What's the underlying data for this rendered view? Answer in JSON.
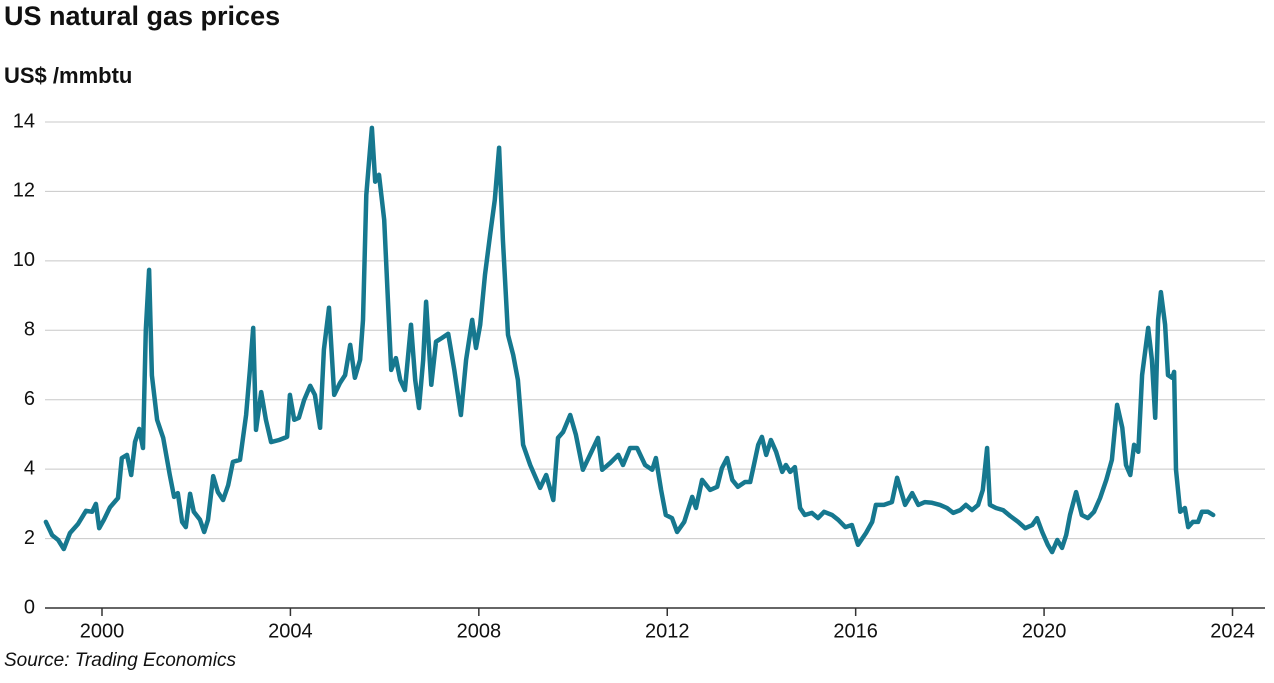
{
  "chart_data": {
    "type": "line",
    "title": "US natural gas prices",
    "y_label": "US$ /mmbtu",
    "source": "Source: Trading Economics",
    "color": "#16788f",
    "grid": true,
    "xlim": [
      1998.79,
      2024.69
    ],
    "ylim": [
      0,
      14
    ],
    "xticks": [
      2000,
      2004,
      2008,
      2012,
      2016,
      2020,
      2024
    ],
    "yticks": [
      0,
      2,
      4,
      6,
      8,
      10,
      12,
      14
    ],
    "x": [
      1998.81,
      1998.94,
      1999.07,
      1999.19,
      1999.32,
      1999.49,
      1999.66,
      1999.79,
      1999.87,
      1999.94,
      2000.04,
      2000.17,
      2000.34,
      2000.42,
      2000.53,
      2000.62,
      2000.7,
      2000.79,
      2000.87,
      2000.93,
      2001.0,
      2001.06,
      2001.17,
      2001.3,
      2001.44,
      2001.53,
      2001.61,
      2001.7,
      2001.78,
      2001.87,
      2001.95,
      2002.08,
      2002.17,
      2002.25,
      2002.36,
      2002.46,
      2002.57,
      2002.68,
      2002.78,
      2002.93,
      2003.06,
      2003.14,
      2003.21,
      2003.27,
      2003.38,
      2003.48,
      2003.59,
      2003.76,
      2003.93,
      2003.99,
      2004.08,
      2004.18,
      2004.29,
      2004.42,
      2004.52,
      2004.63,
      2004.71,
      2004.82,
      2004.93,
      2005.05,
      2005.16,
      2005.27,
      2005.37,
      2005.48,
      2005.54,
      2005.61,
      2005.69,
      2005.73,
      2005.8,
      2005.88,
      2005.99,
      2006.07,
      2006.14,
      2006.24,
      2006.33,
      2006.43,
      2006.56,
      2006.65,
      2006.73,
      2006.82,
      2006.88,
      2006.99,
      2007.09,
      2007.22,
      2007.35,
      2007.48,
      2007.62,
      2007.73,
      2007.86,
      2007.94,
      2008.03,
      2008.13,
      2008.24,
      2008.34,
      2008.43,
      2008.51,
      2008.62,
      2008.73,
      2008.83,
      2008.94,
      2009.09,
      2009.3,
      2009.43,
      2009.58,
      2009.68,
      2009.79,
      2009.94,
      2010.06,
      2010.21,
      2010.36,
      2010.53,
      2010.62,
      2010.79,
      2010.96,
      2011.06,
      2011.21,
      2011.36,
      2011.53,
      2011.68,
      2011.76,
      2011.87,
      2011.97,
      2012.1,
      2012.21,
      2012.36,
      2012.53,
      2012.61,
      2012.74,
      2012.91,
      2013.06,
      2013.16,
      2013.27,
      2013.38,
      2013.5,
      2013.65,
      2013.76,
      2013.84,
      2013.93,
      2014.01,
      2014.1,
      2014.2,
      2014.31,
      2014.44,
      2014.52,
      2014.61,
      2014.71,
      2014.82,
      2014.92,
      2015.07,
      2015.2,
      2015.33,
      2015.5,
      2015.63,
      2015.78,
      2015.92,
      2016.05,
      2016.22,
      2016.35,
      2016.43,
      2016.6,
      2016.77,
      2016.88,
      2017.05,
      2017.2,
      2017.33,
      2017.47,
      2017.62,
      2017.79,
      2017.94,
      2018.07,
      2018.22,
      2018.34,
      2018.47,
      2018.6,
      2018.7,
      2018.79,
      2018.85,
      2018.98,
      2019.13,
      2019.28,
      2019.45,
      2019.6,
      2019.75,
      2019.85,
      2019.96,
      2020.08,
      2020.17,
      2020.28,
      2020.38,
      2020.47,
      2020.55,
      2020.68,
      2020.8,
      2020.93,
      2021.06,
      2021.19,
      2021.32,
      2021.44,
      2021.55,
      2021.66,
      2021.74,
      2021.83,
      2021.91,
      2022.0,
      2022.08,
      2022.21,
      2022.29,
      2022.36,
      2022.42,
      2022.48,
      2022.57,
      2022.63,
      2022.72,
      2022.76,
      2022.8,
      2022.89,
      2022.99,
      2023.06,
      2023.16,
      2023.27,
      2023.35,
      2023.48,
      2023.59
    ],
    "values": [
      2.48,
      2.1,
      1.96,
      1.7,
      2.16,
      2.42,
      2.8,
      2.77,
      3.0,
      2.3,
      2.54,
      2.9,
      3.17,
      4.32,
      4.41,
      3.83,
      4.78,
      5.16,
      4.61,
      8.0,
      9.74,
      6.7,
      5.42,
      4.9,
      3.83,
      3.2,
      3.31,
      2.48,
      2.33,
      3.29,
      2.77,
      2.54,
      2.19,
      2.54,
      3.8,
      3.34,
      3.11,
      3.54,
      4.21,
      4.27,
      5.56,
      6.86,
      8.07,
      5.13,
      6.22,
      5.42,
      4.78,
      4.84,
      4.93,
      6.14,
      5.42,
      5.48,
      5.99,
      6.4,
      6.14,
      5.19,
      7.44,
      8.65,
      6.14,
      6.48,
      6.71,
      7.58,
      6.63,
      7.15,
      8.3,
      11.9,
      13.2,
      13.83,
      12.28,
      12.48,
      11.18,
      8.88,
      6.86,
      7.2,
      6.57,
      6.28,
      8.16,
      6.57,
      5.76,
      7.15,
      8.82,
      6.43,
      7.67,
      7.78,
      7.9,
      6.86,
      5.56,
      7.15,
      8.3,
      7.49,
      8.16,
      9.6,
      10.75,
      11.76,
      13.26,
      10.6,
      7.87,
      7.29,
      6.57,
      4.7,
      4.12,
      3.46,
      3.83,
      3.11,
      4.9,
      5.07,
      5.56,
      4.99,
      3.98,
      4.41,
      4.9,
      3.98,
      4.18,
      4.41,
      4.12,
      4.61,
      4.61,
      4.12,
      3.98,
      4.32,
      3.4,
      2.68,
      2.59,
      2.19,
      2.48,
      3.2,
      2.88,
      3.69,
      3.4,
      3.49,
      4.03,
      4.32,
      3.69,
      3.49,
      3.63,
      3.63,
      4.12,
      4.7,
      4.93,
      4.41,
      4.84,
      4.5,
      3.92,
      4.12,
      3.92,
      4.06,
      2.88,
      2.68,
      2.74,
      2.59,
      2.77,
      2.68,
      2.54,
      2.33,
      2.39,
      1.82,
      2.16,
      2.48,
      2.97,
      2.97,
      3.05,
      3.75,
      2.97,
      3.31,
      2.97,
      3.05,
      3.03,
      2.97,
      2.88,
      2.74,
      2.82,
      2.97,
      2.82,
      2.97,
      3.4,
      4.61,
      2.97,
      2.88,
      2.82,
      2.65,
      2.48,
      2.3,
      2.39,
      2.59,
      2.19,
      1.82,
      1.61,
      1.96,
      1.73,
      2.1,
      2.68,
      3.34,
      2.68,
      2.59,
      2.77,
      3.17,
      3.69,
      4.27,
      5.85,
      5.19,
      4.12,
      3.83,
      4.7,
      4.5,
      6.71,
      8.07,
      7.15,
      5.48,
      8.3,
      9.1,
      8.16,
      6.71,
      6.63,
      6.8,
      3.98,
      2.77,
      2.88,
      2.33,
      2.48,
      2.48,
      2.77,
      2.77,
      2.68
    ]
  }
}
